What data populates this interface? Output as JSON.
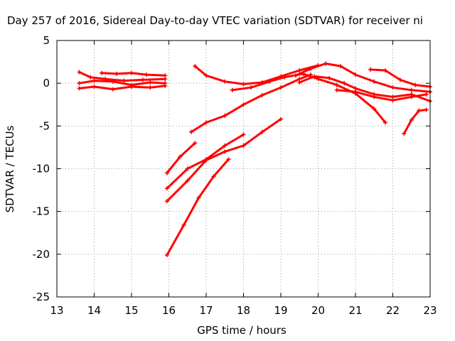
{
  "chart_data": {
    "type": "line",
    "title": "Day 257 of 2016, Sidereal Day-to-day VTEC variation (SDTVAR) for receiver ni",
    "xlabel": "GPS time / hours",
    "ylabel": "SDTVAR / TECUs",
    "xlim": [
      13,
      23
    ],
    "ylim": [
      -25,
      5
    ],
    "xticks": [
      "13",
      "14",
      "15",
      "16",
      "17",
      "18",
      "19",
      "20",
      "21",
      "22",
      "23"
    ],
    "yticks": [
      "5",
      "0",
      "-5",
      "-10",
      "-15",
      "-20",
      "-25"
    ],
    "grid": true,
    "color": "#ff0000",
    "series": [
      {
        "x": [
          13.6,
          13.9,
          14.3,
          14.8,
          15.3,
          15.9
        ],
        "y": [
          1.3,
          0.7,
          0.5,
          0.3,
          0.4,
          0.5
        ]
      },
      {
        "x": [
          13.6,
          14.0,
          14.5,
          15.0,
          15.5,
          15.9
        ],
        "y": [
          0.0,
          0.3,
          0.2,
          -0.2,
          0.1,
          0.0
        ]
      },
      {
        "x": [
          13.6,
          14.0,
          14.5,
          15.0,
          15.5,
          15.9
        ],
        "y": [
          -0.6,
          -0.4,
          -0.7,
          -0.4,
          -0.5,
          -0.3
        ]
      },
      {
        "x": [
          14.2,
          14.6,
          15.0,
          15.4,
          15.9
        ],
        "y": [
          1.2,
          1.1,
          1.2,
          1.0,
          0.9
        ]
      },
      {
        "x": [
          16.7,
          17.0,
          17.5,
          18.0,
          18.5,
          19.0,
          19.5,
          20.0
        ],
        "y": [
          2.0,
          0.9,
          0.2,
          -0.1,
          0.1,
          0.8,
          1.5,
          2.1
        ]
      },
      {
        "x": [
          17.7,
          18.2,
          18.7,
          19.1,
          19.6,
          20.0,
          20.5,
          21.0,
          21.5,
          21.8
        ],
        "y": [
          -0.8,
          -0.5,
          0.2,
          0.7,
          1.1,
          0.5,
          -0.2,
          -1.2,
          -3.0,
          -4.6
        ]
      },
      {
        "x": [
          19.4,
          19.8,
          20.2,
          20.6,
          21.0,
          21.5,
          22.0,
          22.5,
          23.0
        ],
        "y": [
          0.9,
          1.7,
          2.3,
          2.0,
          1.0,
          0.2,
          -0.5,
          -0.8,
          -1.0
        ]
      },
      {
        "x": [
          19.5,
          19.9,
          20.3,
          20.7,
          21.0,
          21.5,
          22.0,
          22.5,
          23.0
        ],
        "y": [
          0.1,
          0.8,
          0.6,
          0.0,
          -0.6,
          -1.3,
          -1.6,
          -1.3,
          -2.1
        ]
      },
      {
        "x": [
          20.5,
          21.0,
          21.5,
          22.0,
          22.5,
          22.9
        ],
        "y": [
          -0.8,
          -1.0,
          -1.6,
          -2.0,
          -1.6,
          -1.3
        ]
      },
      {
        "x": [
          21.4,
          21.8,
          22.2,
          22.6,
          23.0
        ],
        "y": [
          1.6,
          1.5,
          0.4,
          -0.2,
          -0.4
        ]
      },
      {
        "x": [
          16.6,
          17.0,
          17.5,
          18.0,
          18.5,
          19.0,
          19.5,
          19.8
        ],
        "y": [
          -5.7,
          -4.6,
          -3.8,
          -2.5,
          -1.4,
          -0.5,
          0.5,
          1.0
        ]
      },
      {
        "x": [
          15.95,
          16.3,
          16.7
        ],
        "y": [
          -10.5,
          -8.6,
          -7.0
        ]
      },
      {
        "x": [
          15.95,
          16.5,
          17.0,
          17.5,
          18.0
        ],
        "y": [
          -12.3,
          -10.0,
          -8.9,
          -7.3,
          -6.0
        ]
      },
      {
        "x": [
          15.95,
          16.5,
          17.0,
          17.5,
          18.0,
          18.5,
          19.0
        ],
        "y": [
          -13.8,
          -11.4,
          -9.0,
          -8.0,
          -7.3,
          -5.7,
          -4.2
        ]
      },
      {
        "x": [
          15.95,
          16.4,
          16.8,
          17.2,
          17.6
        ],
        "y": [
          -20.1,
          -16.6,
          -13.4,
          -10.9,
          -8.9
        ]
      },
      {
        "x": [
          22.3,
          22.5,
          22.7,
          22.9
        ],
        "y": [
          -5.9,
          -4.3,
          -3.2,
          -3.1
        ]
      }
    ]
  }
}
